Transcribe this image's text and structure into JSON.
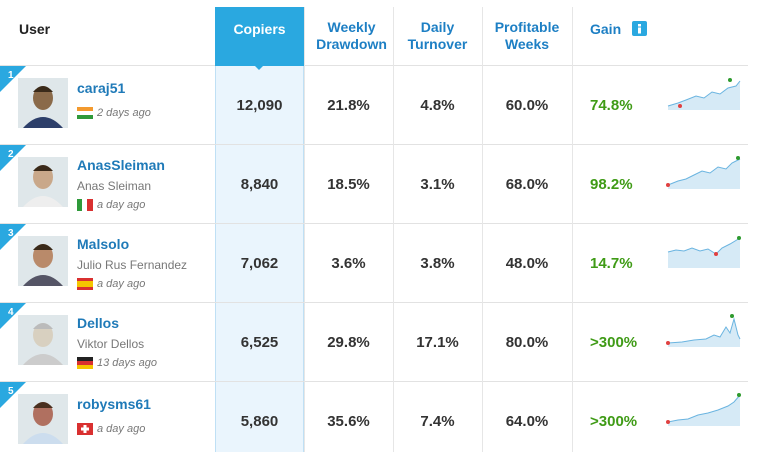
{
  "header": {
    "user": "User",
    "copiers": "Copiers",
    "weekly_drawdown": "Weekly Drawdown",
    "daily_turnover": "Daily Turnover",
    "profitable_weeks": "Profitable Weeks",
    "gain": "Gain"
  },
  "rows": [
    {
      "rank": "1",
      "username": "caraj51",
      "time": "2 days ago",
      "copiers": "12,090",
      "weekly_drawdown": "21.8%",
      "daily_turnover": "4.8%",
      "profitable_weeks": "60.0%",
      "gain": "74.8%"
    },
    {
      "rank": "2",
      "username": "AnasSleiman",
      "full_name": "Anas Sleiman",
      "time": "a day ago",
      "copiers": "8,840",
      "weekly_drawdown": "18.5%",
      "daily_turnover": "3.1%",
      "profitable_weeks": "68.0%",
      "gain": "98.2%"
    },
    {
      "rank": "3",
      "username": "Malsolo",
      "full_name": "Julio Rus Fernandez",
      "time": "a day ago",
      "copiers": "7,062",
      "weekly_drawdown": "3.6%",
      "daily_turnover": "3.8%",
      "profitable_weeks": "48.0%",
      "gain": "14.7%"
    },
    {
      "rank": "4",
      "username": "Dellos",
      "full_name": "Viktor Dellos",
      "time": "13 days ago",
      "copiers": "6,525",
      "weekly_drawdown": "29.8%",
      "daily_turnover": "17.1%",
      "profitable_weeks": "80.0%",
      "gain": ">300%"
    },
    {
      "rank": "5",
      "username": "robysms61",
      "time": "a day ago",
      "copiers": "5,860",
      "weekly_drawdown": "35.6%",
      "daily_turnover": "7.4%",
      "profitable_weeks": "64.0%",
      "gain": ">300%"
    }
  ]
}
